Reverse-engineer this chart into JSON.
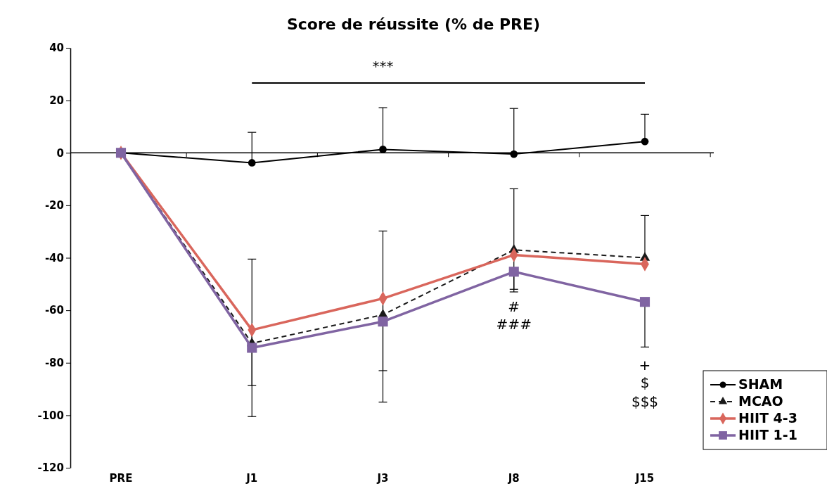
{
  "chart_data": {
    "type": "line",
    "title": "Score de réussite (% de PRE)",
    "categories": [
      "PRE",
      "J1",
      "J3",
      "J8",
      "J15"
    ],
    "series": [
      {
        "name": "SHAM",
        "color": "#000000",
        "marker": "circle",
        "line_style": "solid",
        "values": [
          0,
          -3.8,
          1.3,
          -0.5,
          4.3
        ],
        "errors": [
          null,
          [
            -3.8,
            7.8
          ],
          [
            1.3,
            17.2
          ],
          [
            -0.5,
            16.9
          ],
          [
            4.3,
            14.7
          ]
        ]
      },
      {
        "name": "MCAO",
        "color": "#1a1a1a",
        "marker": "triangle",
        "line_style": "dashed",
        "values": [
          0,
          -72.6,
          -61.7,
          -37,
          -40
        ],
        "errors": [
          null,
          [
            -72.6,
            -40.5
          ],
          [
            -61.7,
            -29.8
          ],
          [
            -37,
            -13.7
          ],
          [
            -40,
            -23.9
          ]
        ]
      },
      {
        "name": "HIIT 4-3",
        "color": "#d9665c",
        "marker": "diamond",
        "line_style": "solid",
        "values": [
          0,
          -67.5,
          -55.5,
          -38.9,
          -42.4
        ],
        "errors": [
          null,
          [
            -88.7,
            -67.5
          ],
          [
            -83,
            -55.5
          ],
          [
            -52,
            -38.9
          ],
          null
        ]
      },
      {
        "name": "HIIT 1-1",
        "color": "#8064a2",
        "marker": "square",
        "line_style": "solid",
        "values": [
          0,
          -74.3,
          -64.3,
          -45.3,
          -56.8
        ],
        "errors": [
          null,
          [
            -100.5,
            -74.3
          ],
          [
            -95,
            -64.3
          ],
          [
            -53,
            -45.3
          ],
          [
            -74,
            -56.8
          ]
        ]
      }
    ],
    "ylim": [
      -120,
      40
    ],
    "yticks": [
      -120,
      -100,
      -80,
      -60,
      -40,
      -20,
      0,
      20,
      40
    ],
    "legend": "bottom right",
    "annotations": [
      "***",
      "#",
      "###",
      "+",
      "$",
      "$$$"
    ]
  }
}
